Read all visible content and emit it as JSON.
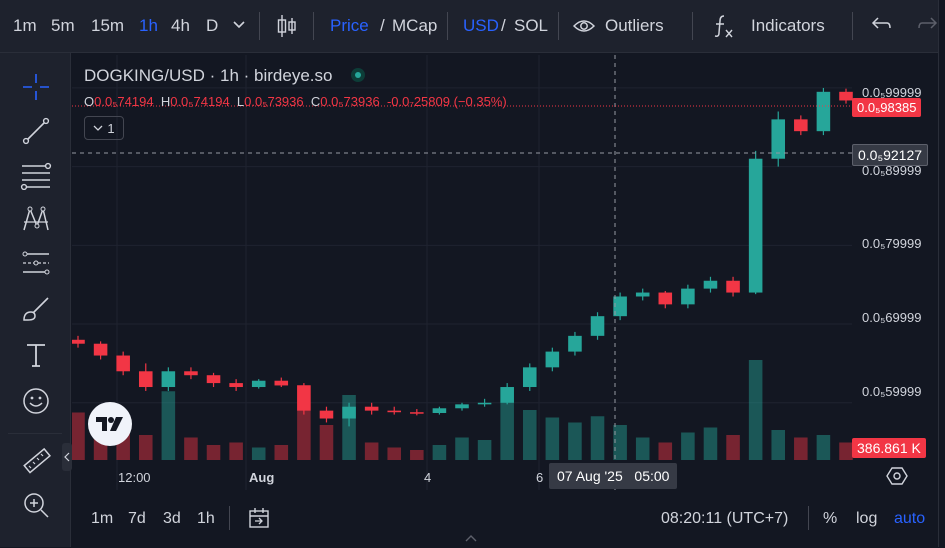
{
  "toolbar": {
    "intervals": [
      "1m",
      "5m",
      "15m",
      "1h",
      "4h",
      "D"
    ],
    "active_interval": "1h",
    "price_label": "Price",
    "mcap_label": "MCap",
    "usd_label": "USD",
    "sol_label": "SOL",
    "slash": "/",
    "outliers_label": "Outliers",
    "indicators_label": "Indicators"
  },
  "legend": {
    "title": "DOGKING/USD · 1h · birdeye.so",
    "o_label": "O",
    "o_value": "0.0₅74194",
    "h_label": "H",
    "h_value": "0.0₅74194",
    "l_label": "L",
    "l_value": "0.0₅73936",
    "c_label": "C",
    "c_value": "0.0₅73936",
    "change": "-0.0₇25809 (−0.35%)",
    "collapse_count": "1"
  },
  "price_axis": {
    "labels": [
      "0.0₅99999",
      "0.0₅89999",
      "0.0₅79999",
      "0.0₅69999",
      "0.0₅59999"
    ],
    "last_price_tag": "0.0₅98385",
    "crosshair_price_tag": "0.0₅92127",
    "volume_tag": "386.861 K"
  },
  "time_axis": {
    "labels": [
      "12:00",
      "Aug",
      "4",
      "6"
    ],
    "crosshair_time_tag": "07 Aug '25   05:00"
  },
  "bottombar": {
    "ranges": [
      "1m",
      "7d",
      "3d",
      "1h"
    ],
    "clock": "08:20:11 (UTC+7)",
    "percent_label": "%",
    "log_label": "log",
    "auto_label": "auto"
  },
  "colors": {
    "up": "#26a69a",
    "down": "#f23645",
    "accent": "#2962ff",
    "background": "#131722"
  },
  "chart_data": {
    "type": "candlestick",
    "x": [
      "Aug 1 12:00",
      "Aug 4",
      "Aug 6",
      "Aug 7 05:00"
    ],
    "ohlc_series": [
      [
        6.8e-06,
        6.85e-06,
        6.7e-06,
        6.75e-06
      ],
      [
        6.75e-06,
        6.78e-06,
        6.55e-06,
        6.6e-06
      ],
      [
        6.6e-06,
        6.65e-06,
        6.35e-06,
        6.4e-06
      ],
      [
        6.4e-06,
        6.5e-06,
        6.15e-06,
        6.2e-06
      ],
      [
        6.2e-06,
        6.45e-06,
        6.15e-06,
        6.4e-06
      ],
      [
        6.4e-06,
        6.45e-06,
        6.3e-06,
        6.35e-06
      ],
      [
        6.35e-06,
        6.38e-06,
        6.2e-06,
        6.25e-06
      ],
      [
        6.25e-06,
        6.3e-06,
        6.15e-06,
        6.2e-06
      ],
      [
        6.2e-06,
        6.3e-06,
        6.18e-06,
        6.28e-06
      ],
      [
        6.28e-06,
        6.32e-06,
        6.2e-06,
        6.22e-06
      ],
      [
        6.22e-06,
        6.25e-06,
        5.85e-06,
        5.9e-06
      ],
      [
        5.9e-06,
        5.95e-06,
        5.75e-06,
        5.8e-06
      ],
      [
        5.8e-06,
        6e-06,
        5.7e-06,
        5.95e-06
      ],
      [
        5.95e-06,
        6e-06,
        5.85e-06,
        5.9e-06
      ],
      [
        5.9e-06,
        5.95e-06,
        5.85e-06,
        5.88e-06
      ],
      [
        5.88e-06,
        5.92e-06,
        5.84e-06,
        5.87e-06
      ],
      [
        5.87e-06,
        5.95e-06,
        5.85e-06,
        5.93e-06
      ],
      [
        5.93e-06,
        6e-06,
        5.9e-06,
        5.98e-06
      ],
      [
        5.98e-06,
        6.05e-06,
        5.95e-06,
        6e-06
      ],
      [
        6e-06,
        6.25e-06,
        5.98e-06,
        6.2e-06
      ],
      [
        6.2e-06,
        6.5e-06,
        6.15e-06,
        6.45e-06
      ],
      [
        6.45e-06,
        6.7e-06,
        6.4e-06,
        6.65e-06
      ],
      [
        6.65e-06,
        6.9e-06,
        6.6e-06,
        6.85e-06
      ],
      [
        6.85e-06,
        7.15e-06,
        6.8e-06,
        7.1e-06
      ],
      [
        7.1e-06,
        7.4e-06,
        7.05e-06,
        7.35e-06
      ],
      [
        7.35e-06,
        7.45e-06,
        7.3e-06,
        7.4e-06
      ],
      [
        7.4e-06,
        7.42e-06,
        7.2e-06,
        7.25e-06
      ],
      [
        7.25e-06,
        7.5e-06,
        7.2e-06,
        7.45e-06
      ],
      [
        7.45e-06,
        7.6e-06,
        7.4e-06,
        7.55e-06
      ],
      [
        7.55e-06,
        7.6e-06,
        7.35e-06,
        7.4e-06
      ],
      [
        7.4e-06,
        9.2e-06,
        7.38e-06,
        9.1e-06
      ],
      [
        9.1e-06,
        9.7e-06,
        9e-06,
        9.6e-06
      ],
      [
        9.6e-06,
        9.65e-06,
        9.4e-06,
        9.45e-06
      ],
      [
        9.45e-06,
        9.999e-06,
        9.4e-06,
        9.95e-06
      ],
      [
        9.95e-06,
        9.99e-06,
        9.8e-06,
        9.84e-06
      ]
    ],
    "volume_series": [
      38,
      30,
      22,
      20,
      55,
      18,
      12,
      14,
      10,
      12,
      60,
      28,
      52,
      14,
      10,
      8,
      12,
      18,
      16,
      58,
      40,
      34,
      30,
      35,
      28,
      18,
      14,
      22,
      26,
      20,
      80,
      24,
      18,
      20,
      14
    ],
    "ylim": [
      5.4e-06,
      1.01e-05
    ],
    "ylabel": "",
    "xlabel": ""
  }
}
